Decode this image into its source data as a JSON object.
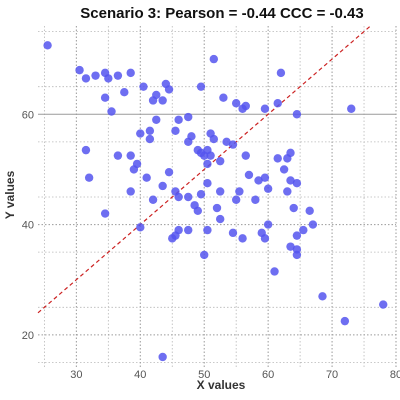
{
  "chart_data": {
    "type": "scatter",
    "title": "Scenario 3: Pearson = -0.44 CCC = -0.43",
    "xlabel": "X values",
    "ylabel": "Y values",
    "xlim": [
      24,
      80
    ],
    "ylim": [
      14,
      76
    ],
    "x_ticks": [
      30,
      40,
      50,
      60,
      70,
      80
    ],
    "y_ticks": [
      20,
      40,
      60
    ],
    "grid": true,
    "point_color": "#5555ee",
    "reference_line": {
      "slope": 1,
      "intercept": 0,
      "color": "#cc2222",
      "style": "dashed"
    },
    "points": [
      [
        25.5,
        72.5
      ],
      [
        30.5,
        68.0
      ],
      [
        31.5,
        66.5
      ],
      [
        33.0,
        67.0
      ],
      [
        34.5,
        67.5
      ],
      [
        35.0,
        66.5
      ],
      [
        36.5,
        67.0
      ],
      [
        37.5,
        64.0
      ],
      [
        38.5,
        67.5
      ],
      [
        34.5,
        63.0
      ],
      [
        35.5,
        60.5
      ],
      [
        40.5,
        65.0
      ],
      [
        43.5,
        62.5
      ],
      [
        44.5,
        64.5
      ],
      [
        42.5,
        63.5
      ],
      [
        42.0,
        62.5
      ],
      [
        44.0,
        65.5
      ],
      [
        51.5,
        70.0
      ],
      [
        53.0,
        63.0
      ],
      [
        55.0,
        62.0
      ],
      [
        56.0,
        61.0
      ],
      [
        56.5,
        61.5
      ],
      [
        59.5,
        61.0
      ],
      [
        61.5,
        62.0
      ],
      [
        62.0,
        67.5
      ],
      [
        73.0,
        61.0
      ],
      [
        64.5,
        60.0
      ],
      [
        49.5,
        65.0
      ],
      [
        47.5,
        59.5
      ],
      [
        46.0,
        59.0
      ],
      [
        31.5,
        53.5
      ],
      [
        36.5,
        52.5
      ],
      [
        39.5,
        51.0
      ],
      [
        38.5,
        52.5
      ],
      [
        39.0,
        50.0
      ],
      [
        40.0,
        56.5
      ],
      [
        41.5,
        55.5
      ],
      [
        41.5,
        57.0
      ],
      [
        42.5,
        59.0
      ],
      [
        45.5,
        57.0
      ],
      [
        47.5,
        55.0
      ],
      [
        48.0,
        56.0
      ],
      [
        49.0,
        53.5
      ],
      [
        49.5,
        53.0
      ],
      [
        50.0,
        52.5
      ],
      [
        50.5,
        53.5
      ],
      [
        51.0,
        52.5
      ],
      [
        50.5,
        51.0
      ],
      [
        52.5,
        51.5
      ],
      [
        51.0,
        56.5
      ],
      [
        51.5,
        55.5
      ],
      [
        53.5,
        55.0
      ],
      [
        54.5,
        54.5
      ],
      [
        56.5,
        52.5
      ],
      [
        57.0,
        49.0
      ],
      [
        58.5,
        48.0
      ],
      [
        59.5,
        48.5
      ],
      [
        60.0,
        46.5
      ],
      [
        61.5,
        52.0
      ],
      [
        63.0,
        52.0
      ],
      [
        63.5,
        53.0
      ],
      [
        62.5,
        50.0
      ],
      [
        63.5,
        48.0
      ],
      [
        64.5,
        47.5
      ],
      [
        63.0,
        46.0
      ],
      [
        32.0,
        48.5
      ],
      [
        38.5,
        46.0
      ],
      [
        41.0,
        48.5
      ],
      [
        42.0,
        44.5
      ],
      [
        43.5,
        47.0
      ],
      [
        44.5,
        49.5
      ],
      [
        45.5,
        46.0
      ],
      [
        46.0,
        45.0
      ],
      [
        47.5,
        45.0
      ],
      [
        48.5,
        43.5
      ],
      [
        49.0,
        42.5
      ],
      [
        49.5,
        45.5
      ],
      [
        50.5,
        47.5
      ],
      [
        52.0,
        43.0
      ],
      [
        52.5,
        46.0
      ],
      [
        55.0,
        44.5
      ],
      [
        55.5,
        46.0
      ],
      [
        58.0,
        44.5
      ],
      [
        34.5,
        42.0
      ],
      [
        40.0,
        39.5
      ],
      [
        45.0,
        37.5
      ],
      [
        45.5,
        38.0
      ],
      [
        46.0,
        39.0
      ],
      [
        47.5,
        39.0
      ],
      [
        50.5,
        39.0
      ],
      [
        52.5,
        41.0
      ],
      [
        54.5,
        38.5
      ],
      [
        56.0,
        37.5
      ],
      [
        59.0,
        38.5
      ],
      [
        59.5,
        37.5
      ],
      [
        60.0,
        40.0
      ],
      [
        64.5,
        38.0
      ],
      [
        63.5,
        36.0
      ],
      [
        64.5,
        35.5
      ],
      [
        65.5,
        39.0
      ],
      [
        64.0,
        43.0
      ],
      [
        66.5,
        42.5
      ],
      [
        67.0,
        40.0
      ],
      [
        50.0,
        34.5
      ],
      [
        64.5,
        34.5
      ],
      [
        61.0,
        31.5
      ],
      [
        68.5,
        27.0
      ],
      [
        72.0,
        22.5
      ],
      [
        78.0,
        25.5
      ],
      [
        43.5,
        16.0
      ]
    ]
  }
}
